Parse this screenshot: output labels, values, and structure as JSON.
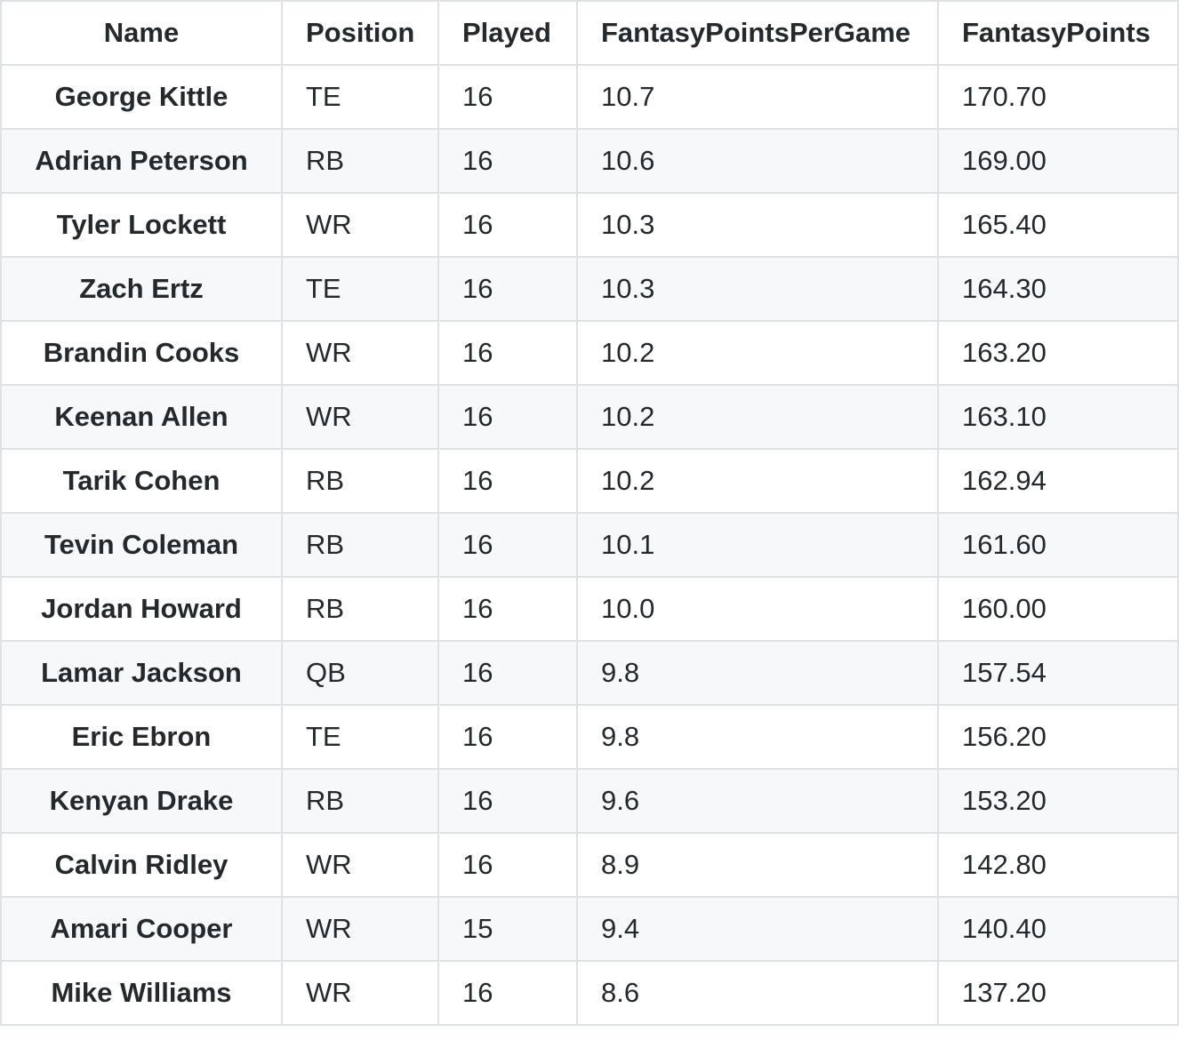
{
  "table": {
    "headers": [
      "Name",
      "Position",
      "Played",
      "FantasyPointsPerGame",
      "FantasyPoints"
    ],
    "rows": [
      [
        "George Kittle",
        "TE",
        "16",
        "10.7",
        "170.70"
      ],
      [
        "Adrian Peterson",
        "RB",
        "16",
        "10.6",
        "169.00"
      ],
      [
        "Tyler Lockett",
        "WR",
        "16",
        "10.3",
        "165.40"
      ],
      [
        "Zach Ertz",
        "TE",
        "16",
        "10.3",
        "164.30"
      ],
      [
        "Brandin Cooks",
        "WR",
        "16",
        "10.2",
        "163.20"
      ],
      [
        "Keenan Allen",
        "WR",
        "16",
        "10.2",
        "163.10"
      ],
      [
        "Tarik Cohen",
        "RB",
        "16",
        "10.2",
        "162.94"
      ],
      [
        "Tevin Coleman",
        "RB",
        "16",
        "10.1",
        "161.60"
      ],
      [
        "Jordan Howard",
        "RB",
        "16",
        "10.0",
        "160.00"
      ],
      [
        "Lamar Jackson",
        "QB",
        "16",
        "9.8",
        "157.54"
      ],
      [
        "Eric Ebron",
        "TE",
        "16",
        "9.8",
        "156.20"
      ],
      [
        "Kenyan Drake",
        "RB",
        "16",
        "9.6",
        "153.20"
      ],
      [
        "Calvin Ridley",
        "WR",
        "16",
        "8.9",
        "142.80"
      ],
      [
        "Amari Cooper",
        "WR",
        "15",
        "9.4",
        "140.40"
      ],
      [
        "Mike Williams",
        "WR",
        "16",
        "8.6",
        "137.20"
      ]
    ]
  }
}
